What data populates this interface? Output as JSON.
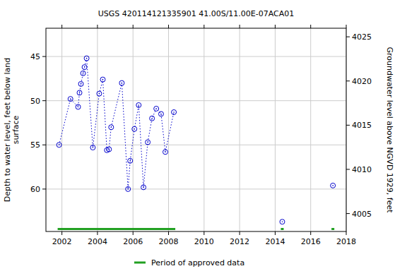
{
  "chart_data": {
    "type": "scatter",
    "title": "USGS 420114121335901 41.00S/11.00E-07ACA01",
    "ylabel": [
      "Depth to water level, feet below land",
      "surface"
    ],
    "y2label": "Groundwater level above NGVD 1929, feet",
    "x": [
      2001.84,
      2002.48,
      2002.91,
      2002.99,
      2003.07,
      2003.19,
      2003.27,
      2003.39,
      2003.74,
      2004.1,
      2004.3,
      2004.53,
      2004.65,
      2004.77,
      2005.37,
      2005.72,
      2005.84,
      2006.08,
      2006.32,
      2006.59,
      2006.83,
      2007.07,
      2007.31,
      2007.58,
      2007.82,
      2008.3,
      null,
      2014.4,
      null,
      2017.25
    ],
    "values": [
      55.0,
      49.8,
      50.7,
      49.1,
      48.1,
      46.9,
      46.2,
      45.2,
      55.3,
      49.2,
      47.6,
      55.6,
      55.5,
      53.0,
      48.0,
      60.0,
      56.8,
      53.2,
      50.5,
      59.8,
      54.7,
      52.0,
      50.9,
      51.5,
      55.8,
      51.3,
      null,
      63.7,
      null,
      59.6
    ],
    "color": "#0000cc",
    "marker": "circle",
    "line_style": "dotted",
    "xlim": [
      2001.1,
      2018.0
    ],
    "xticks": [
      2002,
      2004,
      2006,
      2008,
      2010,
      2012,
      2014,
      2016,
      2018
    ],
    "ylim": [
      64.8,
      41.8
    ],
    "yticks": [
      45,
      50,
      55,
      60
    ],
    "y2lim": [
      4002.97,
      4025.97
    ],
    "y2ticks": [
      4005,
      4010,
      4015,
      4020,
      4025
    ],
    "grid": true,
    "approved_periods": {
      "name": "Period of approved data",
      "color": "#22a022",
      "ranges": [
        [
          2001.76,
          2008.38
        ],
        [
          2014.32,
          2014.48
        ],
        [
          2017.17,
          2017.33
        ]
      ]
    }
  }
}
